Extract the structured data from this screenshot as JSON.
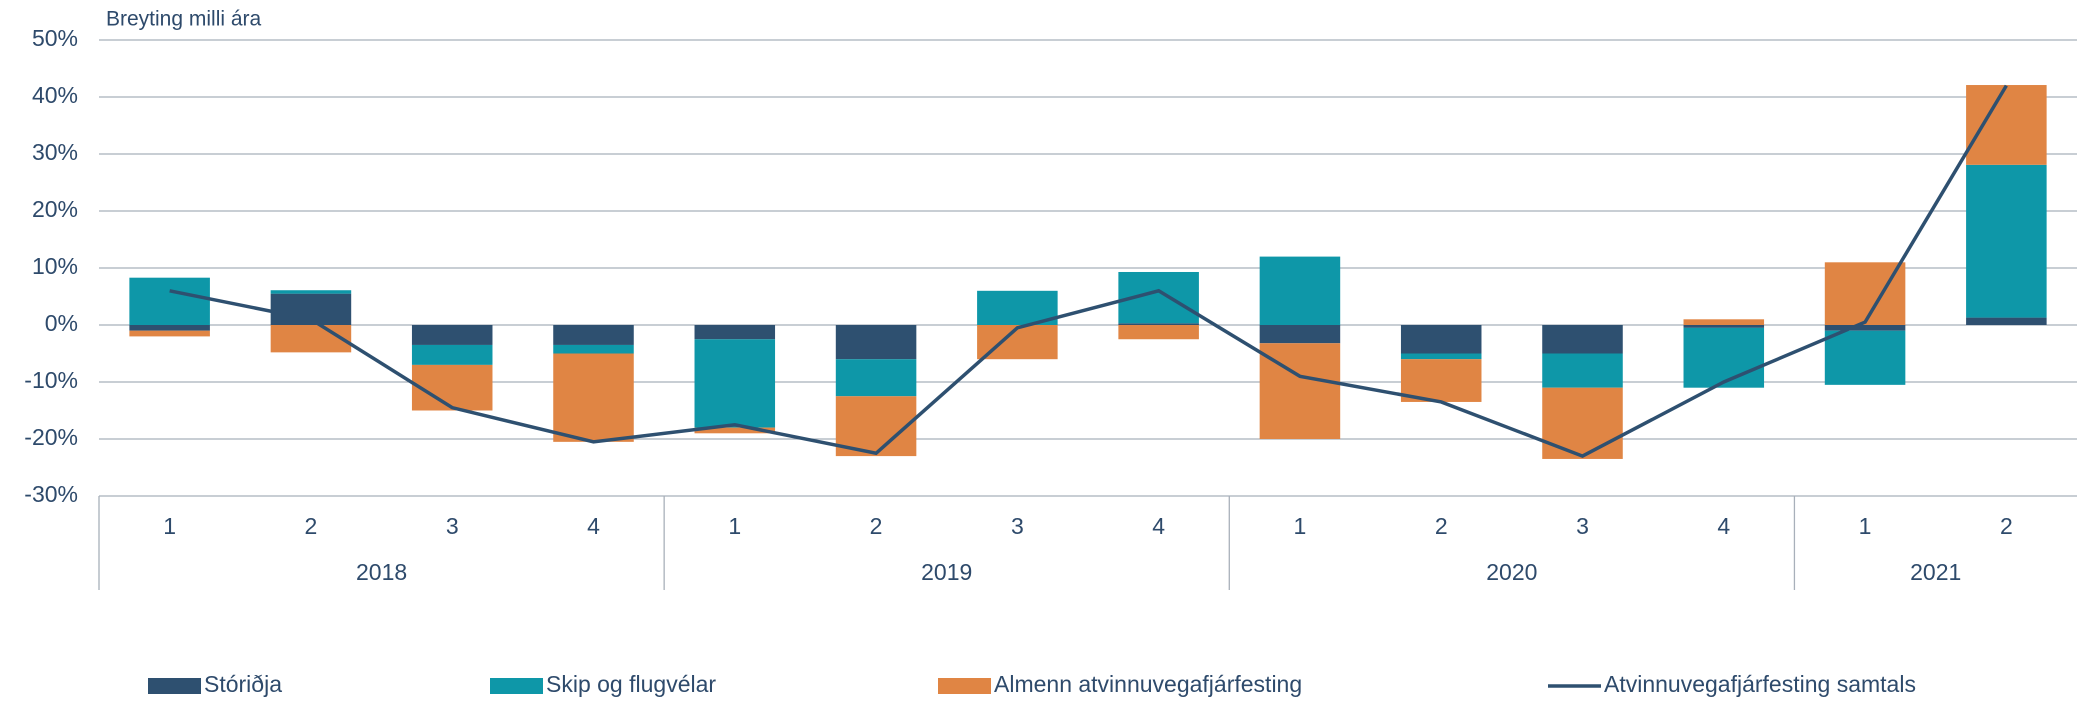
{
  "chart_data": {
    "type": "bar",
    "axis_title": "Breyting milli ára",
    "groups": [
      {
        "label": "2018",
        "categories": [
          "1",
          "2",
          "3",
          "4"
        ]
      },
      {
        "label": "2019",
        "categories": [
          "1",
          "2",
          "3",
          "4"
        ]
      },
      {
        "label": "2020",
        "categories": [
          "1",
          "2",
          "3",
          "4"
        ]
      },
      {
        "label": "2021",
        "categories": [
          "1",
          "2"
        ]
      }
    ],
    "series": [
      {
        "name": "Stóriðja",
        "type": "bar",
        "color": "#2e5070",
        "values": [
          -1,
          5.5,
          -3.5,
          -3.5,
          -2.5,
          -6,
          0,
          0.3,
          -3.2,
          -5,
          -5,
          -0.5,
          -1,
          1.3
        ]
      },
      {
        "name": "Skip og flugvélar",
        "type": "bar",
        "color": "#0e97a8",
        "values": [
          8.3,
          0.6,
          -3.5,
          -1.5,
          -15.5,
          -6.5,
          6,
          9,
          12,
          -1,
          -6,
          -10.5,
          -9.5,
          26.8
        ]
      },
      {
        "name": "Almenn atvinnuvegafjárfesting",
        "type": "bar",
        "color": "#e08544",
        "values": [
          -1,
          -4.8,
          -8,
          -15.5,
          -1,
          -10.5,
          -6,
          -2.5,
          -16.8,
          -7.5,
          -12.5,
          1,
          11,
          14
        ]
      },
      {
        "name": "Atvinnuvegafjárfesting samtals",
        "type": "line",
        "color": "#2e5070",
        "values": [
          6,
          1,
          -14.5,
          -20.5,
          -17.5,
          -22.5,
          -0.5,
          6,
          -9,
          -13.5,
          -23,
          -10,
          0.5,
          42
        ]
      }
    ],
    "ylim": [
      -30,
      50
    ],
    "yticks": [
      {
        "value": -30,
        "label": "-30%"
      },
      {
        "value": -20,
        "label": "-20%"
      },
      {
        "value": -10,
        "label": "-10%"
      },
      {
        "value": 0,
        "label": "0%"
      },
      {
        "value": 10,
        "label": "10%"
      },
      {
        "value": 20,
        "label": "20%"
      },
      {
        "value": 30,
        "label": "30%"
      },
      {
        "value": 40,
        "label": "40%"
      },
      {
        "value": 50,
        "label": "50%"
      }
    ],
    "grid": true
  }
}
